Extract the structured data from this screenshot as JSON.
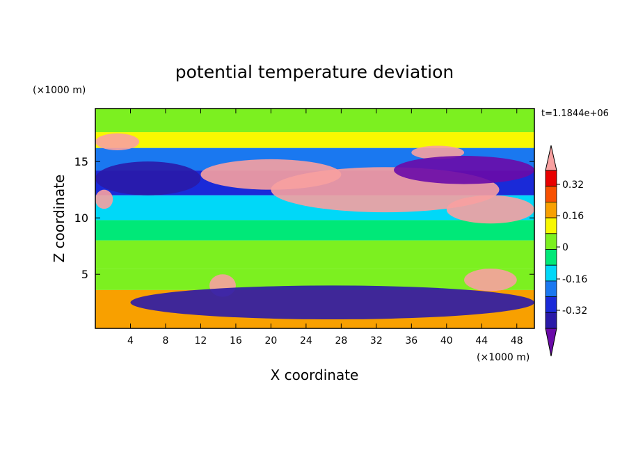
{
  "chart_data": {
    "type": "heatmap",
    "title": "potential temperature deviation",
    "time_label": "t=1.1844e+06",
    "xlabel": "X coordinate",
    "ylabel": "Z coordinate",
    "x_unit": "(×1000 m)",
    "y_unit": "(×1000 m)",
    "xlim": [
      0,
      50
    ],
    "ylim": [
      0.2,
      19.7
    ],
    "x_ticks": [
      4,
      8,
      12,
      16,
      20,
      24,
      28,
      32,
      36,
      40,
      44,
      48
    ],
    "y_ticks": [
      5,
      10,
      15
    ],
    "levels": [
      -0.4,
      -0.32,
      -0.24,
      -0.16,
      -0.08,
      0,
      0.08,
      0.16,
      0.24,
      0.32,
      0.4
    ],
    "colorbar_labels": [
      "0.32",
      "0.16",
      "0",
      "-0.16",
      "-0.32"
    ],
    "colorbar_colors": [
      "#6a0aa8",
      "#2a1aa8",
      "#1a2ad8",
      "#1a78f0",
      "#00d8f8",
      "#00e878",
      "#7cf020",
      "#f8f800",
      "#f8a000",
      "#f85000",
      "#e80000",
      "#f8a0a0"
    ],
    "bands": [
      {
        "z": [
          17.6,
          19.7
        ],
        "value": 0.02
      },
      {
        "z": [
          16.2,
          17.6
        ],
        "value": 0.12
      },
      {
        "z": [
          14.2,
          16.2
        ],
        "value": -0.2
      },
      {
        "z": [
          12.0,
          14.2
        ],
        "value": -0.3
      },
      {
        "z": [
          9.8,
          12.0
        ],
        "value": -0.16
      },
      {
        "z": [
          8.0,
          9.8
        ],
        "value": -0.06
      },
      {
        "z": [
          5.5,
          8.0
        ],
        "value": 0.05
      },
      {
        "z": [
          3.6,
          5.5
        ],
        "value": 0.0
      },
      {
        "z": [
          0.2,
          3.6
        ],
        "value": 0.2
      }
    ],
    "features": [
      {
        "x": [
          12,
          28
        ],
        "z": [
          12.5,
          15.2
        ],
        "value": 0.42
      },
      {
        "x": [
          20,
          46
        ],
        "z": [
          10.5,
          14.5
        ],
        "value": 0.42
      },
      {
        "x": [
          40,
          50
        ],
        "z": [
          9.5,
          12.0
        ],
        "value": 0.42
      },
      {
        "x": [
          0,
          5
        ],
        "z": [
          16.0,
          17.5
        ],
        "value": 0.42
      },
      {
        "x": [
          0,
          2
        ],
        "z": [
          10.8,
          12.5
        ],
        "value": 0.42
      },
      {
        "x": [
          36,
          42
        ],
        "z": [
          15.2,
          16.4
        ],
        "value": 0.42
      },
      {
        "x": [
          34,
          50
        ],
        "z": [
          13.0,
          15.5
        ],
        "value": -0.42
      },
      {
        "x": [
          0,
          12
        ],
        "z": [
          12.0,
          15.0
        ],
        "value": -0.35
      },
      {
        "x": [
          42,
          48
        ],
        "z": [
          3.5,
          5.5
        ],
        "value": 0.42
      },
      {
        "x": [
          13,
          16
        ],
        "z": [
          3.0,
          5.0
        ],
        "value": 0.42
      },
      {
        "x": [
          4,
          50
        ],
        "z": [
          1.0,
          4.0
        ],
        "value": -0.35
      }
    ]
  }
}
